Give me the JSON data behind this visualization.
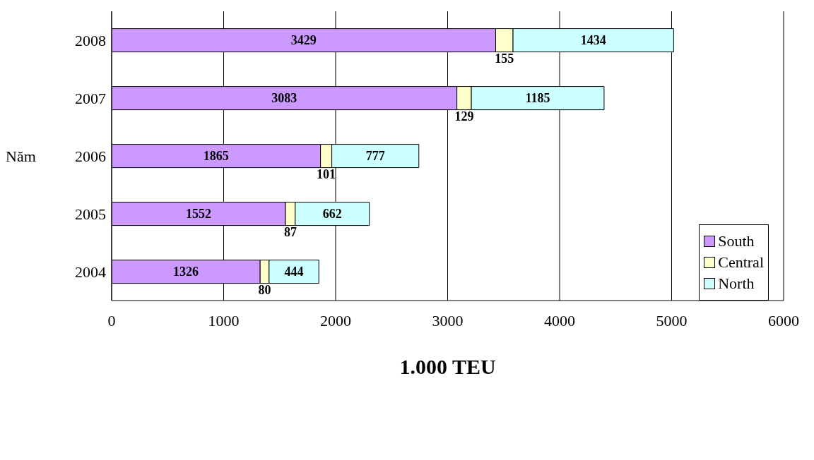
{
  "chart_data": {
    "type": "bar",
    "orientation": "horizontal",
    "stacked": true,
    "xlabel": "1.000 TEU",
    "ylabel": "Năm",
    "categories": [
      "2008",
      "2007",
      "2006",
      "2005",
      "2004"
    ],
    "series": [
      {
        "name": "South",
        "color": "#cc99ff",
        "values": [
          3429,
          3083,
          1865,
          1552,
          1326
        ]
      },
      {
        "name": "Central",
        "color": "#ffffcc",
        "values": [
          155,
          129,
          101,
          87,
          80
        ]
      },
      {
        "name": "North",
        "color": "#ccffff",
        "values": [
          1434,
          1185,
          777,
          662,
          444
        ]
      }
    ],
    "xlim": [
      0,
      6000
    ],
    "xticks": [
      0,
      1000,
      2000,
      3000,
      4000,
      5000,
      6000
    ],
    "grid": "x",
    "legend": "bottom right",
    "data_labels": true
  }
}
